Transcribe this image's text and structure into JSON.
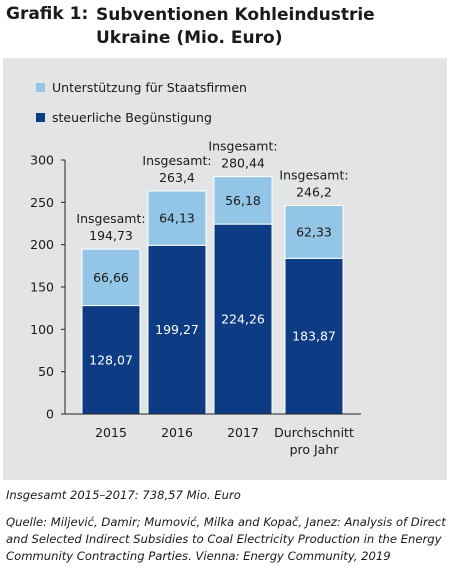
{
  "heading": {
    "number": "Grafik 1:",
    "title": "Subventionen Kohleindustrie Ukraine (Mio. Euro)"
  },
  "chart_data": {
    "type": "bar",
    "stacked": true,
    "categories": [
      "2015",
      "2016",
      "2017",
      "Durchschnitt pro Jahr"
    ],
    "series": [
      {
        "name": "steuerliche Begünstigung",
        "values": [
          128.07,
          199.27,
          224.26,
          183.87
        ],
        "labels": [
          "128,07",
          "199,27",
          "224,26",
          "183,87"
        ],
        "color": "#0d3c84"
      },
      {
        "name": "Unterstützung für Staatsfirmen",
        "values": [
          66.66,
          64.13,
          56.18,
          62.33
        ],
        "labels": [
          "66,66",
          "64,13",
          "56,18",
          "62,33"
        ],
        "color": "#93c6e6"
      }
    ],
    "totals": {
      "prefix": "Insgesamt:",
      "values": [
        194.73,
        263.4,
        280.44,
        246.2
      ],
      "labels": [
        "194,73",
        "263,4",
        "280,44",
        "246,2"
      ]
    },
    "ylim": [
      0,
      300
    ],
    "yticks": [
      0,
      50,
      100,
      150,
      200,
      250,
      300
    ],
    "legend_position": "top-left",
    "grid": false
  },
  "footer": {
    "total_note": "Insgesamt 2015–2017: 738,57 Mio. Euro",
    "source_lines": [
      "Quelle: Miljević, Damir; Mumović, Milka and Kopač, Janez: Analysis of Direct",
      "and Selected Indirect Subsidies to Coal Electricity Production in the Energy",
      "Community Contracting Parties. Vienna: Energy Community, 2019"
    ]
  }
}
